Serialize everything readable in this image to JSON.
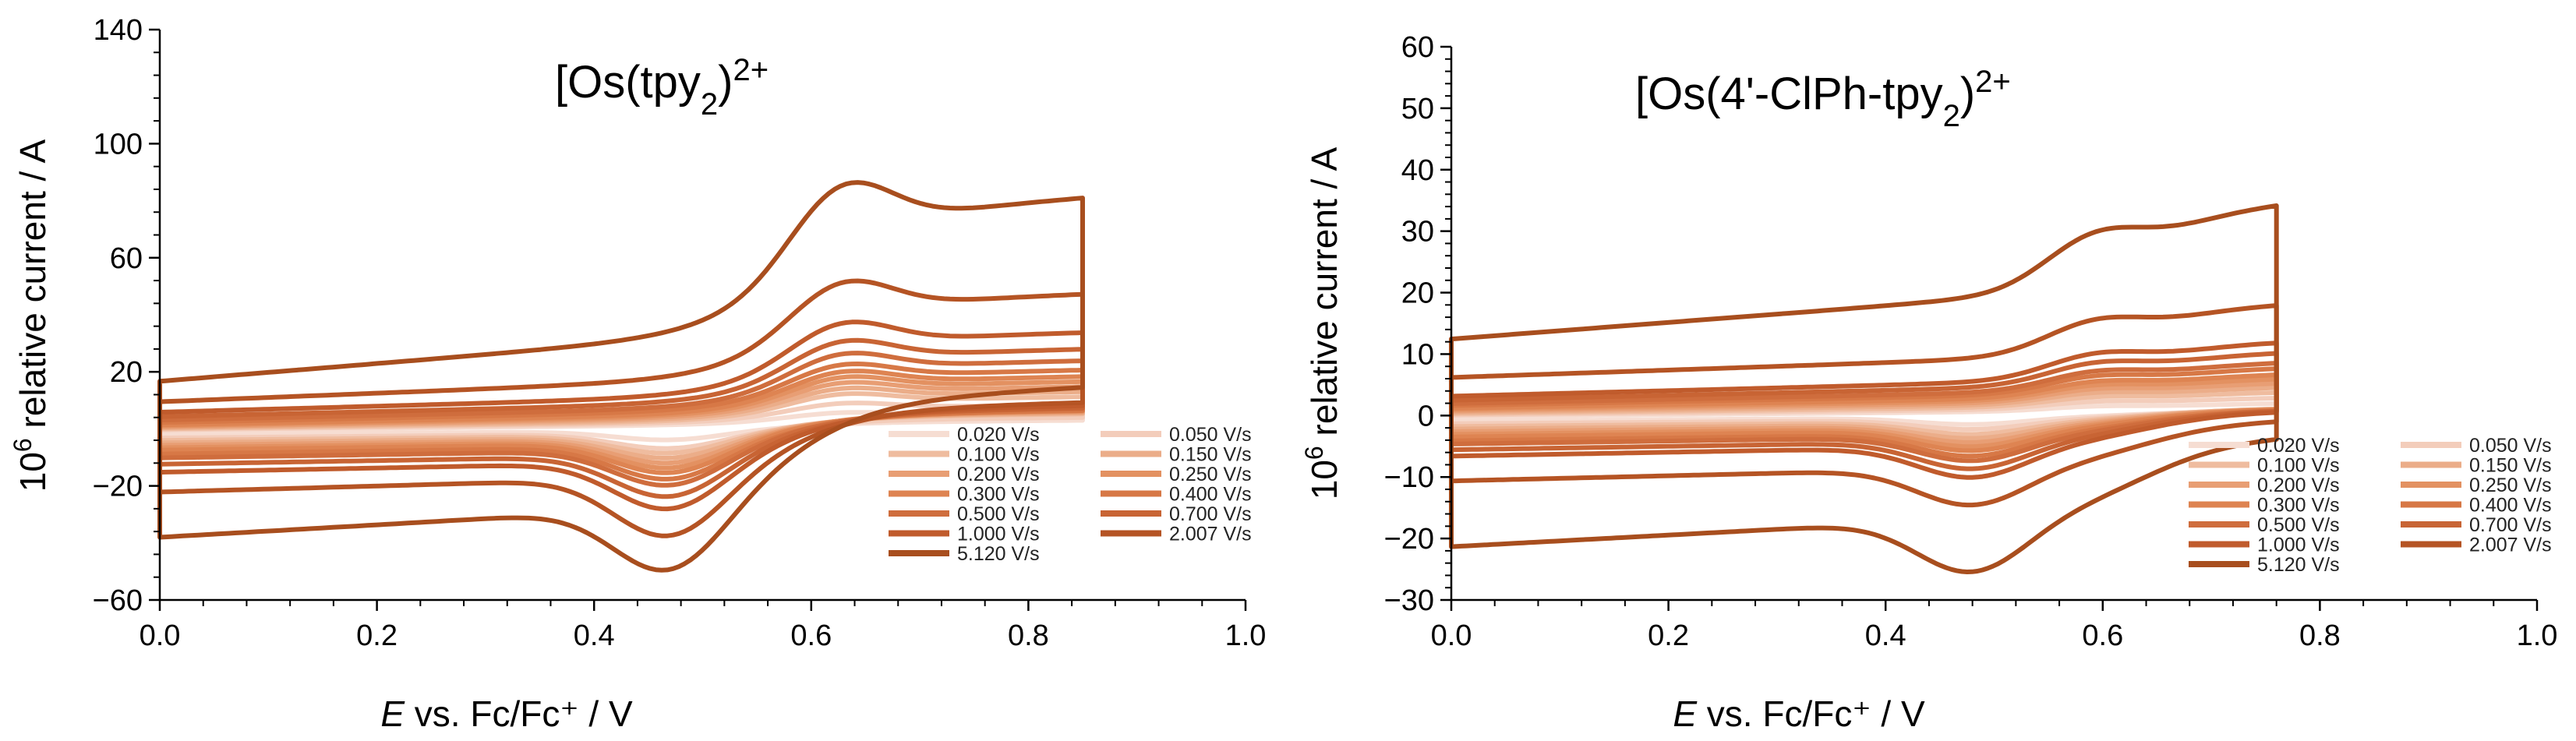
{
  "chart_data": [
    {
      "type": "line",
      "title": "[Os(tpy)2]2+",
      "title_parts": {
        "base": "[Os(tpy",
        "sub": "2",
        "mid": ")",
        "sup": "2+"
      },
      "xlabel": {
        "italic": "E",
        "rest": " vs. Fc/Fc⁺ / V"
      },
      "ylabel": {
        "base": "10",
        "sup": "6",
        "rest": " relative current / A"
      },
      "xlim": [
        0.0,
        1.0
      ],
      "ylim": [
        -60,
        140
      ],
      "xticks": [
        "0.0",
        "0.2",
        "0.4",
        "0.6",
        "0.8",
        "1.0"
      ],
      "yticks": [
        "−60",
        "−20",
        "20",
        "60",
        "100",
        "140"
      ],
      "xtick_values": [
        0.0,
        0.2,
        0.4,
        0.6,
        0.8,
        1.0
      ],
      "ytick_values": [
        -60,
        -20,
        20,
        60,
        100,
        140
      ],
      "legend_position": "bottom-right",
      "legend_entries": [
        "0.020 V/s",
        "0.050 V/s",
        "0.100 V/s",
        "0.150 V/s",
        "0.200 V/s",
        "0.250 V/s",
        "0.300 V/s",
        "0.400 V/s",
        "0.500 V/s",
        "0.700 V/s",
        "1.000 V/s",
        "2.007 V/s",
        "5.120 V/s"
      ],
      "cv": {
        "e_min": 0.0,
        "e_max": 0.85,
        "e0": 0.58,
        "width": 0.045,
        "pa": 0.625,
        "pc": 0.47
      },
      "series": [
        {
          "name": "0.020 V/s",
          "color": "#f6ddd2",
          "cap": 0.5,
          "slope": 8,
          "ipa": 3,
          "ipc": 3
        },
        {
          "name": "0.050 V/s",
          "color": "#f3cdbb",
          "cap": 1.0,
          "slope": 9,
          "ipa": 5,
          "ipc": 5
        },
        {
          "name": "0.100 V/s",
          "color": "#efbc9f",
          "cap": 1.5,
          "slope": 10,
          "ipa": 7,
          "ipc": 6
        },
        {
          "name": "0.150 V/s",
          "color": "#ebad89",
          "cap": 2.0,
          "slope": 11,
          "ipa": 8,
          "ipc": 7
        },
        {
          "name": "0.200 V/s",
          "color": "#e89e74",
          "cap": 2.5,
          "slope": 12,
          "ipa": 9,
          "ipc": 8
        },
        {
          "name": "0.250 V/s",
          "color": "#e39161",
          "cap": 3.0,
          "slope": 13,
          "ipa": 10,
          "ipc": 9
        },
        {
          "name": "0.300 V/s",
          "color": "#de8452",
          "cap": 3.5,
          "slope": 14,
          "ipa": 11,
          "ipc": 10
        },
        {
          "name": "0.400 V/s",
          "color": "#d77846",
          "cap": 4.5,
          "slope": 15,
          "ipa": 12,
          "ipc": 11
        },
        {
          "name": "0.500 V/s",
          "color": "#cf6d3d",
          "cap": 5.5,
          "slope": 16,
          "ipa": 14,
          "ipc": 12
        },
        {
          "name": "0.700 V/s",
          "color": "#c86434",
          "cap": 7.0,
          "slope": 18,
          "ipa": 16,
          "ipc": 14
        },
        {
          "name": "1.000 V/s",
          "color": "#c05b2c",
          "cap": 9.0,
          "slope": 21,
          "ipa": 19,
          "ipc": 16
        },
        {
          "name": "2.007 V/s",
          "color": "#b55424",
          "cap": 14.0,
          "slope": 30,
          "ipa": 25,
          "ipc": 20
        },
        {
          "name": "5.120 V/s",
          "color": "#a84e1e",
          "cap": 26.0,
          "slope": 62,
          "ipa": 38,
          "ipc": 22
        }
      ]
    },
    {
      "type": "line",
      "title": "[Os(4'-ClPh-tpy)2]2+",
      "title_parts": {
        "base": "[Os(4'-ClPh-tpy",
        "sub": "2",
        "mid": ")",
        "sup": "2+"
      },
      "xlabel": {
        "italic": "E",
        "rest": " vs. Fc/Fc⁺ / V"
      },
      "ylabel": {
        "base": "10",
        "sup": "6",
        "rest": " relative current / A"
      },
      "xlim": [
        0.0,
        1.0
      ],
      "ylim": [
        -30,
        60
      ],
      "xticks": [
        "0.0",
        "0.2",
        "0.4",
        "0.6",
        "0.8",
        "1.0"
      ],
      "yticks": [
        "−30",
        "−20",
        "−10",
        "0",
        "10",
        "20",
        "30",
        "40",
        "50",
        "60"
      ],
      "xtick_values": [
        0.0,
        0.2,
        0.4,
        0.6,
        0.8,
        1.0
      ],
      "ytick_values": [
        -30,
        -20,
        -10,
        0,
        10,
        20,
        30,
        40,
        50,
        60
      ],
      "legend_position": "bottom-right",
      "legend_entries": [
        "0.020 V/s",
        "0.050 V/s",
        "0.100 V/s",
        "0.150 V/s",
        "0.200 V/s",
        "0.250 V/s",
        "0.300 V/s",
        "0.400 V/s",
        "0.500 V/s",
        "0.700 V/s",
        "1.000 V/s",
        "2.007 V/s",
        "5.120 V/s"
      ],
      "cv": {
        "e_min": 0.0,
        "e_max": 0.76,
        "e0": 0.64,
        "width": 0.04,
        "pa": 0.59,
        "pc": 0.48
      },
      "series": [
        {
          "name": "0.020 V/s",
          "color": "#f6ddd2",
          "cap": 0.3,
          "slope": 3,
          "ipa": 1.0,
          "ipc": 1.0
        },
        {
          "name": "0.050 V/s",
          "color": "#f3cdbb",
          "cap": 0.6,
          "slope": 3.5,
          "ipa": 1.5,
          "ipc": 1.4
        },
        {
          "name": "0.100 V/s",
          "color": "#efbc9f",
          "cap": 0.9,
          "slope": 4,
          "ipa": 2.0,
          "ipc": 1.8
        },
        {
          "name": "0.150 V/s",
          "color": "#ebad89",
          "cap": 1.2,
          "slope": 4.5,
          "ipa": 2.4,
          "ipc": 2.1
        },
        {
          "name": "0.200 V/s",
          "color": "#e89e74",
          "cap": 1.5,
          "slope": 5,
          "ipa": 2.7,
          "ipc": 2.4
        },
        {
          "name": "0.250 V/s",
          "color": "#e39161",
          "cap": 1.8,
          "slope": 5.5,
          "ipa": 3.0,
          "ipc": 2.7
        },
        {
          "name": "0.300 V/s",
          "color": "#de8452",
          "cap": 2.1,
          "slope": 6,
          "ipa": 3.3,
          "ipc": 3.0
        },
        {
          "name": "0.400 V/s",
          "color": "#d77846",
          "cap": 2.6,
          "slope": 6.5,
          "ipa": 3.7,
          "ipc": 3.3
        },
        {
          "name": "0.500 V/s",
          "color": "#cf6d3d",
          "cap": 3.0,
          "slope": 7,
          "ipa": 4.1,
          "ipc": 3.6
        },
        {
          "name": "0.700 V/s",
          "color": "#c86434",
          "cap": 3.7,
          "slope": 8,
          "ipa": 4.8,
          "ipc": 4.1
        },
        {
          "name": "1.000 V/s",
          "color": "#c05b2c",
          "cap": 4.5,
          "slope": 9,
          "ipa": 5.5,
          "ipc": 4.6
        },
        {
          "name": "2.007 V/s",
          "color": "#b55424",
          "cap": 8.0,
          "slope": 12,
          "ipa": 7.5,
          "ipc": 5.5
        },
        {
          "name": "5.120 V/s",
          "color": "#a84e1e",
          "cap": 16.5,
          "slope": 27,
          "ipa": 12.0,
          "ipc": 8.0
        }
      ]
    }
  ]
}
